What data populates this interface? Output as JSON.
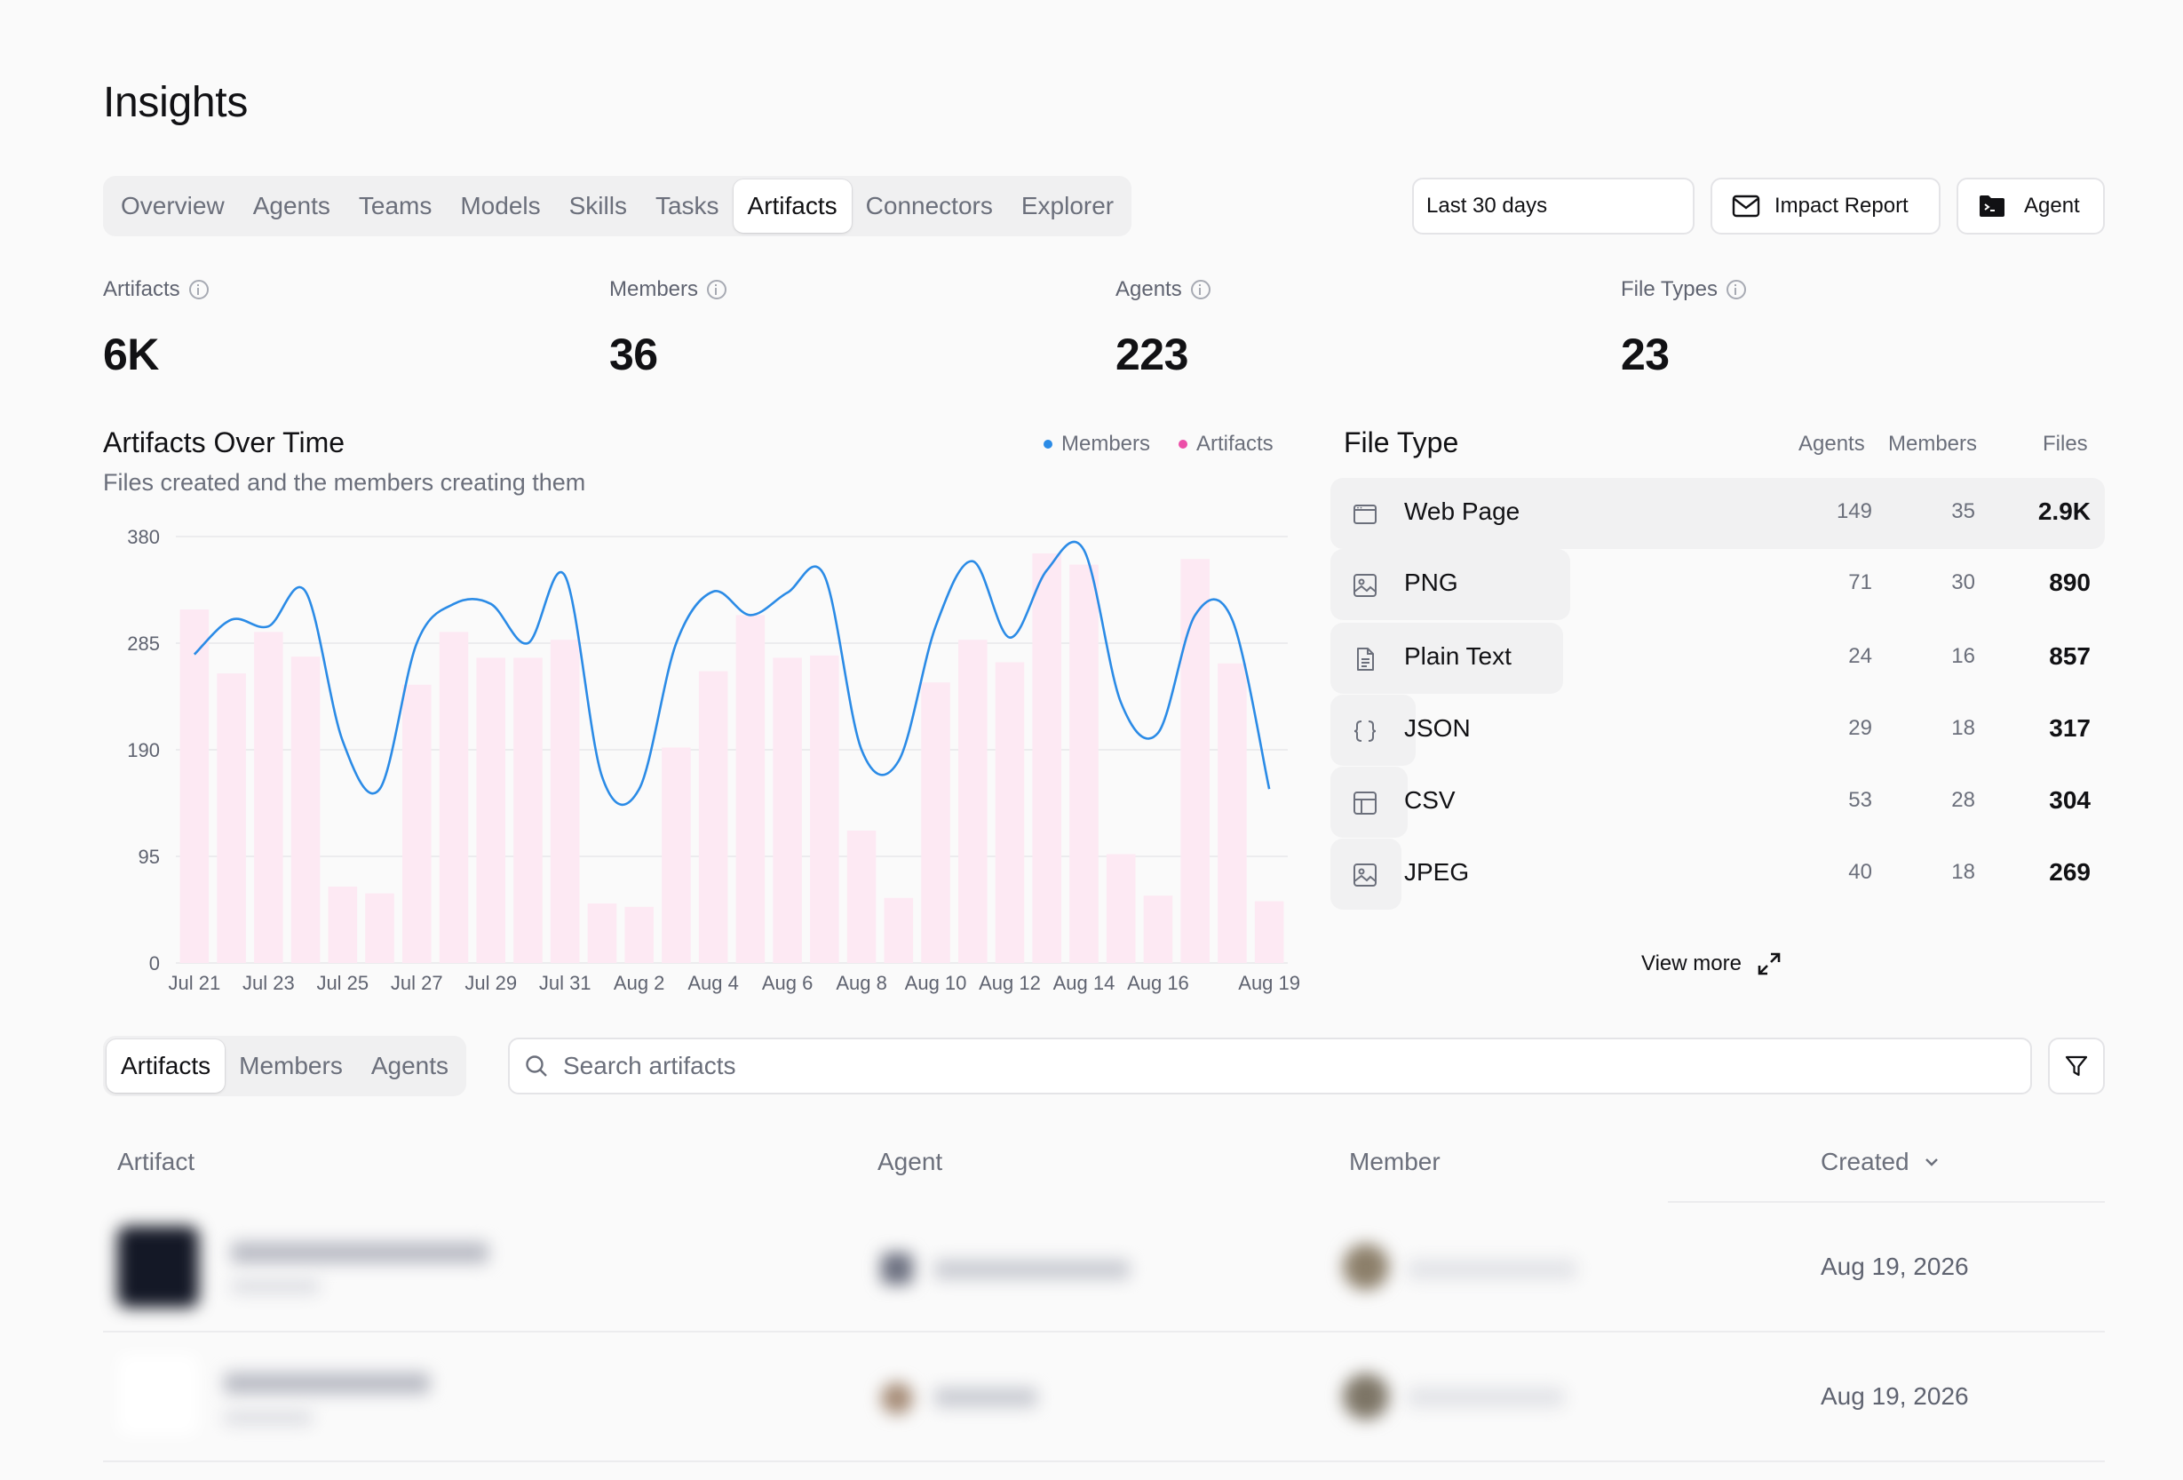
{
  "page": {
    "title": "Insights"
  },
  "tabs": [
    "Overview",
    "Agents",
    "Teams",
    "Models",
    "Skills",
    "Tasks",
    "Artifacts",
    "Connectors",
    "Explorer"
  ],
  "active_tab": "Artifacts",
  "date_range": "Last 30 days",
  "impact_report_label": "Impact Report",
  "agent_button_label": "Agent",
  "metrics": [
    {
      "label": "Artifacts",
      "value": "6K"
    },
    {
      "label": "Members",
      "value": "36"
    },
    {
      "label": "Agents",
      "value": "223"
    },
    {
      "label": "File Types",
      "value": "23"
    }
  ],
  "chart": {
    "title": "Artifacts Over Time",
    "subtitle": "Files created and the members creating them",
    "legend": [
      {
        "name": "Members",
        "color": "#2b8be6"
      },
      {
        "name": "Artifacts",
        "color": "#ec4fa8"
      }
    ]
  },
  "chart_data": {
    "type": "bar",
    "categories": [
      "Jul 21",
      "Jul 22",
      "Jul 23",
      "Jul 24",
      "Jul 25",
      "Jul 26",
      "Jul 27",
      "Jul 28",
      "Jul 29",
      "Jul 30",
      "Jul 31",
      "Aug 1",
      "Aug 2",
      "Aug 3",
      "Aug 4",
      "Aug 5",
      "Aug 6",
      "Aug 7",
      "Aug 8",
      "Aug 9",
      "Aug 10",
      "Aug 11",
      "Aug 12",
      "Aug 13",
      "Aug 14",
      "Aug 15",
      "Aug 16",
      "Aug 17",
      "Aug 18",
      "Aug 19"
    ],
    "tick_labels": [
      "Jul 21",
      "Jul 23",
      "Jul 25",
      "Jul 27",
      "Jul 29",
      "Jul 31",
      "Aug 2",
      "Aug 4",
      "Aug 6",
      "Aug 8",
      "Aug 10",
      "Aug 12",
      "Aug 14",
      "Aug 16",
      "Aug 19"
    ],
    "series": [
      {
        "name": "Artifacts",
        "type": "bar",
        "color": "#fde9f3",
        "values": [
          315,
          258,
          295,
          273,
          68,
          62,
          248,
          295,
          272,
          272,
          288,
          53,
          50,
          192,
          260,
          310,
          272,
          274,
          118,
          58,
          250,
          288,
          268,
          365,
          355,
          97,
          60,
          360,
          267,
          55
        ]
      },
      {
        "name": "Members",
        "type": "line",
        "color": "#2b8be6",
        "values": [
          275,
          306,
          300,
          331,
          198,
          155,
          285,
          320,
          320,
          285,
          345,
          166,
          155,
          285,
          331,
          310,
          330,
          345,
          190,
          180,
          300,
          358,
          290,
          350,
          368,
          232,
          205,
          310,
          306,
          155
        ]
      }
    ],
    "yticks": [
      0,
      95,
      190,
      285,
      380
    ],
    "ylim": [
      0,
      380
    ],
    "grid": true,
    "legend_position": "top-right"
  },
  "file_types": {
    "title": "File Type",
    "headers": {
      "agents": "Agents",
      "members": "Members",
      "files": "Files"
    },
    "rows": [
      {
        "name": "Web Page",
        "icon": "browser-icon",
        "agents": "149",
        "members": "35",
        "files": "2.9K",
        "bar_fraction": 1.0
      },
      {
        "name": "PNG",
        "icon": "image-icon",
        "agents": "71",
        "members": "30",
        "files": "890",
        "bar_fraction": 0.31
      },
      {
        "name": "Plain Text",
        "icon": "document-icon",
        "agents": "24",
        "members": "16",
        "files": "857",
        "bar_fraction": 0.3
      },
      {
        "name": "JSON",
        "icon": "braces-icon",
        "agents": "29",
        "members": "18",
        "files": "317",
        "bar_fraction": 0.11
      },
      {
        "name": "CSV",
        "icon": "table-icon",
        "agents": "53",
        "members": "28",
        "files": "304",
        "bar_fraction": 0.1
      },
      {
        "name": "JPEG",
        "icon": "image-icon",
        "agents": "40",
        "members": "18",
        "files": "269",
        "bar_fraction": 0.09
      }
    ],
    "view_more": "View more"
  },
  "lower_tabs": [
    "Artifacts",
    "Members",
    "Agents"
  ],
  "lower_active": "Artifacts",
  "search_placeholder": "Search artifacts",
  "table": {
    "headers": {
      "artifact": "Artifact",
      "agent": "Agent",
      "member": "Member",
      "created": "Created"
    },
    "rows": [
      {
        "created": "Aug 19, 2026"
      },
      {
        "created": "Aug 19, 2026"
      }
    ]
  }
}
